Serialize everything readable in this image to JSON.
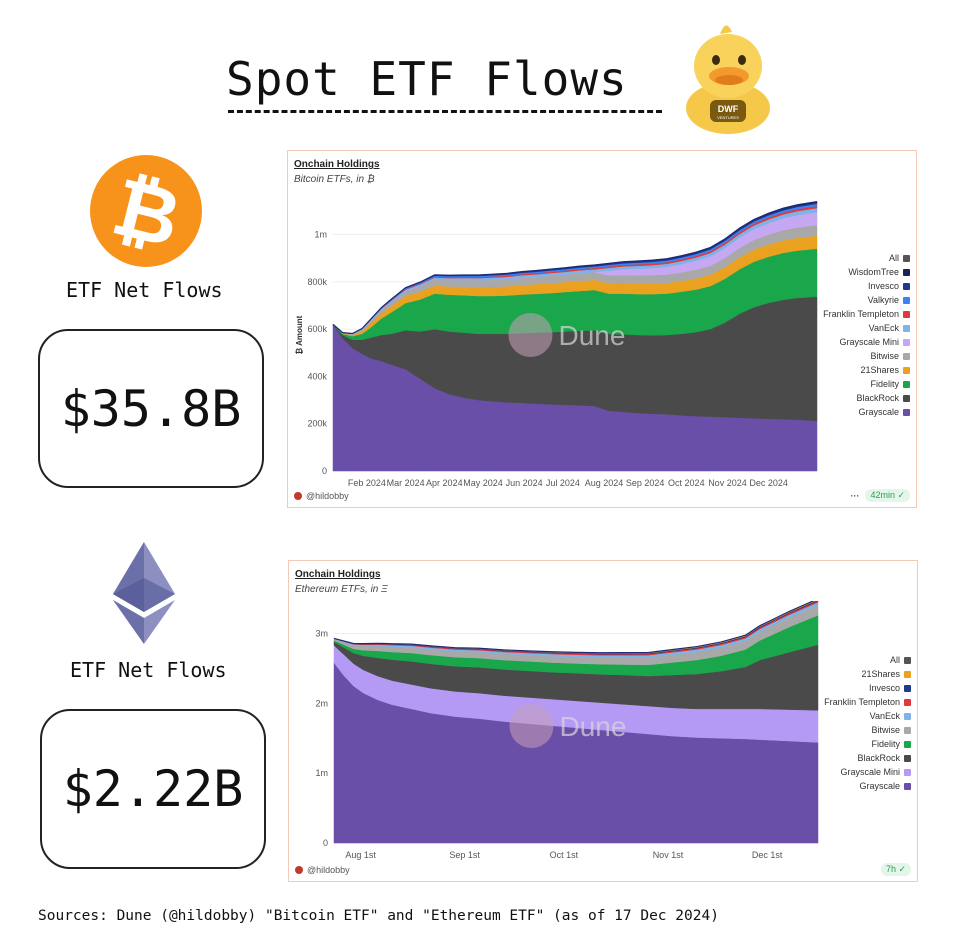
{
  "page": {
    "title": "Spot ETF Flows",
    "sources": "Sources: Dune (@hildobby) \"Bitcoin ETF\" and \"Ethereum ETF\" (as of 17 Dec 2024)",
    "duck_badge": "DWF",
    "duck_badge_sub": "VENTURES"
  },
  "btc": {
    "flows_label": "ETF Net Flows",
    "net_flows": "$35.8B",
    "coin_symbol": "₿"
  },
  "eth": {
    "flows_label": "ETF Net Flows",
    "net_flows": "$2.22B"
  },
  "charts": {
    "btc": {
      "title": "Onchain Holdings",
      "subtitle": "Bitcoin ETFs, in ₿",
      "author": "@hildobby",
      "status": "42min",
      "watermark": "Dune"
    },
    "eth": {
      "title": "Onchain Holdings",
      "subtitle": "Ethereum ETFs, in Ξ",
      "author": "@hildobby",
      "status": "7h",
      "watermark": "Dune"
    }
  },
  "chart_data": [
    {
      "type": "area",
      "stacked": true,
      "title": "Onchain Holdings",
      "subtitle": "Bitcoin ETFs, in ₿",
      "ylabel": "₿ Amount",
      "xlabel": "",
      "ylim": [
        0,
        1150000
      ],
      "y_ticks": [
        0,
        200000,
        400000,
        600000,
        800000,
        1000000
      ],
      "y_tick_labels": [
        "0",
        "200k",
        "400k",
        "600k",
        "800k",
        "1m"
      ],
      "x_tick_labels": [
        "Feb 2024",
        "Mar 2024",
        "Apr 2024",
        "May 2024",
        "Jun 2024",
        "Jul 2024",
        "Aug 2024",
        "Sep 2024",
        "Oct 2024",
        "Nov 2024",
        "Dec 2024"
      ],
      "x_tick_positions": [
        0.07,
        0.15,
        0.23,
        0.31,
        0.395,
        0.475,
        0.56,
        0.645,
        0.73,
        0.815,
        0.9
      ],
      "x": [
        0,
        0.02,
        0.04,
        0.06,
        0.08,
        0.1,
        0.12,
        0.15,
        0.18,
        0.21,
        0.24,
        0.27,
        0.3,
        0.33,
        0.36,
        0.39,
        0.42,
        0.45,
        0.48,
        0.51,
        0.54,
        0.57,
        0.6,
        0.63,
        0.66,
        0.69,
        0.72,
        0.75,
        0.78,
        0.81,
        0.84,
        0.87,
        0.9,
        0.93,
        0.96,
        1.0
      ],
      "series": [
        {
          "name": "Grayscale",
          "color": "#6a4fa8",
          "values": [
            620000,
            560000,
            520000,
            495000,
            475000,
            465000,
            450000,
            430000,
            390000,
            350000,
            325000,
            310000,
            300000,
            295000,
            290000,
            288000,
            285000,
            282000,
            280000,
            278000,
            275000,
            255000,
            250000,
            245000,
            242000,
            240000,
            235000,
            232000,
            230000,
            228000,
            225000,
            223000,
            221000,
            219000,
            217000,
            212000
          ]
        },
        {
          "name": "BlackRock",
          "color": "#4a4a4a",
          "values": [
            0,
            15000,
            35000,
            60000,
            90000,
            110000,
            130000,
            165000,
            200000,
            250000,
            265000,
            275000,
            280000,
            285000,
            290000,
            295000,
            300000,
            305000,
            310000,
            315000,
            320000,
            325000,
            328000,
            330000,
            332000,
            335000,
            345000,
            355000,
            370000,
            400000,
            440000,
            470000,
            490000,
            505000,
            515000,
            525000
          ]
        },
        {
          "name": "Fidelity",
          "color": "#1aa64b",
          "values": [
            0,
            5000,
            15000,
            25000,
            45000,
            70000,
            90000,
            115000,
            135000,
            150000,
            155000,
            158000,
            160000,
            160000,
            162000,
            163000,
            164000,
            165000,
            167000,
            168000,
            170000,
            170000,
            172000,
            173000,
            174000,
            175000,
            178000,
            180000,
            182000,
            185000,
            188000,
            192000,
            195000,
            198000,
            200000,
            203000
          ]
        },
        {
          "name": "21Shares",
          "color": "#e9a11f",
          "values": [
            0,
            2000,
            5000,
            10000,
            18000,
            22000,
            26000,
            30000,
            33000,
            34000,
            35000,
            36000,
            37000,
            38000,
            39000,
            40000,
            41000,
            42000,
            42000,
            43000,
            43000,
            43000,
            44000,
            44000,
            45000,
            45000,
            46000,
            47000,
            48000,
            49000,
            50000,
            51000,
            52000,
            53000,
            54000,
            55000
          ]
        },
        {
          "name": "Bitwise",
          "color": "#a8a8a8",
          "values": [
            0,
            2000,
            4000,
            8000,
            12000,
            15000,
            18000,
            21000,
            24000,
            26000,
            27000,
            28000,
            29000,
            30000,
            30000,
            31000,
            31000,
            32000,
            32000,
            33000,
            33000,
            34000,
            34000,
            35000,
            35000,
            36000,
            36000,
            37000,
            38000,
            39000,
            40000,
            41000,
            42000,
            43000,
            44000,
            45000
          ]
        },
        {
          "name": "Grayscale Mini",
          "color": "#c6a8f2",
          "values": [
            0,
            0,
            0,
            0,
            0,
            0,
            0,
            0,
            0,
            0,
            0,
            0,
            0,
            0,
            0,
            0,
            0,
            0,
            0,
            0,
            0,
            20000,
            25000,
            28000,
            30000,
            32000,
            35000,
            38000,
            40000,
            42000,
            44000,
            46000,
            48000,
            50000,
            52000,
            54000
          ]
        },
        {
          "name": "VanEck",
          "color": "#7fb3e6",
          "values": [
            0,
            500,
            1000,
            2000,
            3000,
            4000,
            5000,
            6000,
            7000,
            8000,
            8500,
            9000,
            9500,
            10000,
            10000,
            10500,
            10500,
            11000,
            11000,
            11500,
            11500,
            12000,
            12000,
            12500,
            12500,
            13000,
            13000,
            13500,
            14000,
            14500,
            15000,
            15500,
            16000,
            16500,
            17000,
            17500
          ]
        },
        {
          "name": "Franklin Templeton",
          "color": "#e0393e",
          "values": [
            0,
            200,
            500,
            800,
            1000,
            1500,
            2000,
            2500,
            3000,
            3500,
            4000,
            4200,
            4400,
            4600,
            4800,
            5000,
            5200,
            5400,
            5600,
            5800,
            6000,
            6200,
            6400,
            6600,
            6800,
            7000,
            7200,
            7400,
            7600,
            7800,
            8000,
            8200,
            8400,
            8600,
            8800,
            9000
          ]
        },
        {
          "name": "Valkyrie",
          "color": "#3b82f6",
          "values": [
            0,
            200,
            500,
            1000,
            1500,
            2000,
            2500,
            3000,
            3500,
            4000,
            4200,
            4400,
            4600,
            4800,
            5000,
            5200,
            5400,
            5600,
            5800,
            6000,
            6200,
            6400,
            6600,
            6800,
            7000,
            7200,
            7400,
            7600,
            7800,
            8000,
            8200,
            8400,
            8600,
            8800,
            9000,
            9200
          ]
        },
        {
          "name": "Invesco",
          "color": "#1e3a8a",
          "values": [
            0,
            100,
            300,
            500,
            800,
            1200,
            1600,
            2000,
            2400,
            2800,
            3000,
            3200,
            3400,
            3600,
            3800,
            4000,
            4100,
            4200,
            4300,
            4400,
            4500,
            4600,
            4700,
            4800,
            4900,
            5000,
            5100,
            5200,
            5300,
            5400,
            5500,
            5600,
            5700,
            5800,
            5900,
            6000
          ]
        },
        {
          "name": "WisdomTree",
          "color": "#172554",
          "values": [
            0,
            50,
            100,
            200,
            300,
            400,
            500,
            600,
            700,
            800,
            900,
            1000,
            1100,
            1200,
            1300,
            1400,
            1500,
            1600,
            1700,
            1800,
            1900,
            2000,
            2100,
            2200,
            2300,
            2400,
            2500,
            2600,
            2700,
            2800,
            2900,
            3000,
            3100,
            3200,
            3300,
            3400
          ]
        }
      ],
      "legend": [
        "All",
        "WisdomTree",
        "Invesco",
        "Valkyrie",
        "Franklin Templeton",
        "VanEck",
        "Grayscale Mini",
        "Bitwise",
        "21Shares",
        "Fidelity",
        "BlackRock",
        "Grayscale"
      ],
      "legend_colors": [
        "#555555",
        "#172554",
        "#1e3a8a",
        "#3b82f6",
        "#e0393e",
        "#7fb3e6",
        "#c6a8f2",
        "#a8a8a8",
        "#e9a11f",
        "#1aa64b",
        "#4a4a4a",
        "#6a4fa8"
      ],
      "legend_position": "right"
    },
    {
      "type": "area",
      "stacked": true,
      "title": "Onchain Holdings",
      "subtitle": "Ethereum ETFs, in Ξ",
      "ylabel": "",
      "xlabel": "",
      "ylim": [
        0,
        3350000
      ],
      "y_ticks": [
        0,
        1000000,
        2000000,
        3000000
      ],
      "y_tick_labels": [
        "0",
        "1m",
        "2m",
        "3m"
      ],
      "x_tick_labels": [
        "Aug 1st",
        "Sep 1st",
        "Oct 1st",
        "Nov 1st",
        "Dec 1st"
      ],
      "x_tick_positions": [
        0.055,
        0.27,
        0.475,
        0.69,
        0.895
      ],
      "x": [
        0,
        0.02,
        0.04,
        0.06,
        0.09,
        0.12,
        0.16,
        0.2,
        0.25,
        0.3,
        0.35,
        0.4,
        0.45,
        0.5,
        0.55,
        0.6,
        0.65,
        0.7,
        0.75,
        0.8,
        0.85,
        0.88,
        0.91,
        0.94,
        0.97,
        1.0
      ],
      "series": [
        {
          "name": "Grayscale",
          "color": "#6a4fa8",
          "values": [
            2580000,
            2400000,
            2250000,
            2150000,
            2050000,
            1980000,
            1920000,
            1860000,
            1810000,
            1780000,
            1740000,
            1710000,
            1680000,
            1650000,
            1620000,
            1590000,
            1560000,
            1530000,
            1510000,
            1500000,
            1490000,
            1480000,
            1470000,
            1460000,
            1450000,
            1440000
          ]
        },
        {
          "name": "Grayscale Mini",
          "color": "#b49af5",
          "values": [
            250000,
            300000,
            320000,
            330000,
            340000,
            345000,
            350000,
            355000,
            360000,
            365000,
            370000,
            375000,
            380000,
            385000,
            390000,
            395000,
            400000,
            405000,
            410000,
            420000,
            430000,
            440000,
            445000,
            450000,
            455000,
            460000
          ]
        },
        {
          "name": "BlackRock",
          "color": "#4a4a4a",
          "values": [
            50000,
            100000,
            150000,
            200000,
            260000,
            300000,
            330000,
            350000,
            360000,
            370000,
            375000,
            380000,
            385000,
            395000,
            405000,
            420000,
            430000,
            470000,
            500000,
            540000,
            600000,
            700000,
            760000,
            820000,
            880000,
            940000
          ]
        },
        {
          "name": "Fidelity",
          "color": "#1aa64b",
          "values": [
            20000,
            40000,
            60000,
            80000,
            100000,
            110000,
            120000,
            125000,
            130000,
            132000,
            134000,
            136000,
            138000,
            140000,
            145000,
            150000,
            160000,
            180000,
            200000,
            220000,
            250000,
            280000,
            320000,
            360000,
            390000,
            420000
          ]
        },
        {
          "name": "Bitwise",
          "color": "#a8a8a8",
          "values": [
            20000,
            35000,
            50000,
            60000,
            70000,
            75000,
            80000,
            82000,
            84000,
            86000,
            88000,
            90000,
            92000,
            94000,
            96000,
            100000,
            105000,
            110000,
            115000,
            118000,
            122000,
            126000,
            130000,
            134000,
            138000,
            142000
          ]
        },
        {
          "name": "VanEck",
          "color": "#7fb3e6",
          "values": [
            5000,
            10000,
            15000,
            18000,
            20000,
            22000,
            24000,
            25000,
            26000,
            27000,
            28000,
            29000,
            30000,
            31000,
            32000,
            33000,
            34000,
            35000,
            36000,
            37000,
            38000,
            39000,
            40000,
            41000,
            42000,
            43000
          ]
        },
        {
          "name": "Franklin Templeton",
          "color": "#e0393e",
          "values": [
            2000,
            4000,
            6000,
            8000,
            9000,
            10000,
            11000,
            12000,
            12500,
            13000,
            13500,
            14000,
            14500,
            15000,
            15500,
            16000,
            16500,
            17000,
            17500,
            18000,
            18500,
            19000,
            19500,
            20000,
            20500,
            21000
          ]
        },
        {
          "name": "Invesco",
          "color": "#1e3a8a",
          "values": [
            1000,
            2000,
            3000,
            4000,
            5000,
            5500,
            6000,
            6500,
            7000,
            7500,
            8000,
            8500,
            9000,
            9500,
            10000,
            10500,
            11000,
            11500,
            12000,
            12500,
            13000,
            13500,
            14000,
            14500,
            15000,
            15500
          ]
        },
        {
          "name": "21Shares",
          "color": "#e9a11f",
          "values": [
            1000,
            2000,
            3000,
            4000,
            5000,
            5500,
            6000,
            6500,
            7000,
            7500,
            8000,
            8500,
            9000,
            9500,
            10000,
            10500,
            11000,
            11500,
            12000,
            12500,
            13000,
            13500,
            14000,
            14500,
            15000,
            15500
          ]
        }
      ],
      "legend": [
        "All",
        "21Shares",
        "Invesco",
        "Franklin Templeton",
        "VanEck",
        "Bitwise",
        "Fidelity",
        "BlackRock",
        "Grayscale Mini",
        "Grayscale"
      ],
      "legend_colors": [
        "#555555",
        "#e9a11f",
        "#1e3a8a",
        "#e0393e",
        "#7fb3e6",
        "#a8a8a8",
        "#1aa64b",
        "#4a4a4a",
        "#b49af5",
        "#6a4fa8"
      ],
      "legend_position": "right"
    }
  ]
}
